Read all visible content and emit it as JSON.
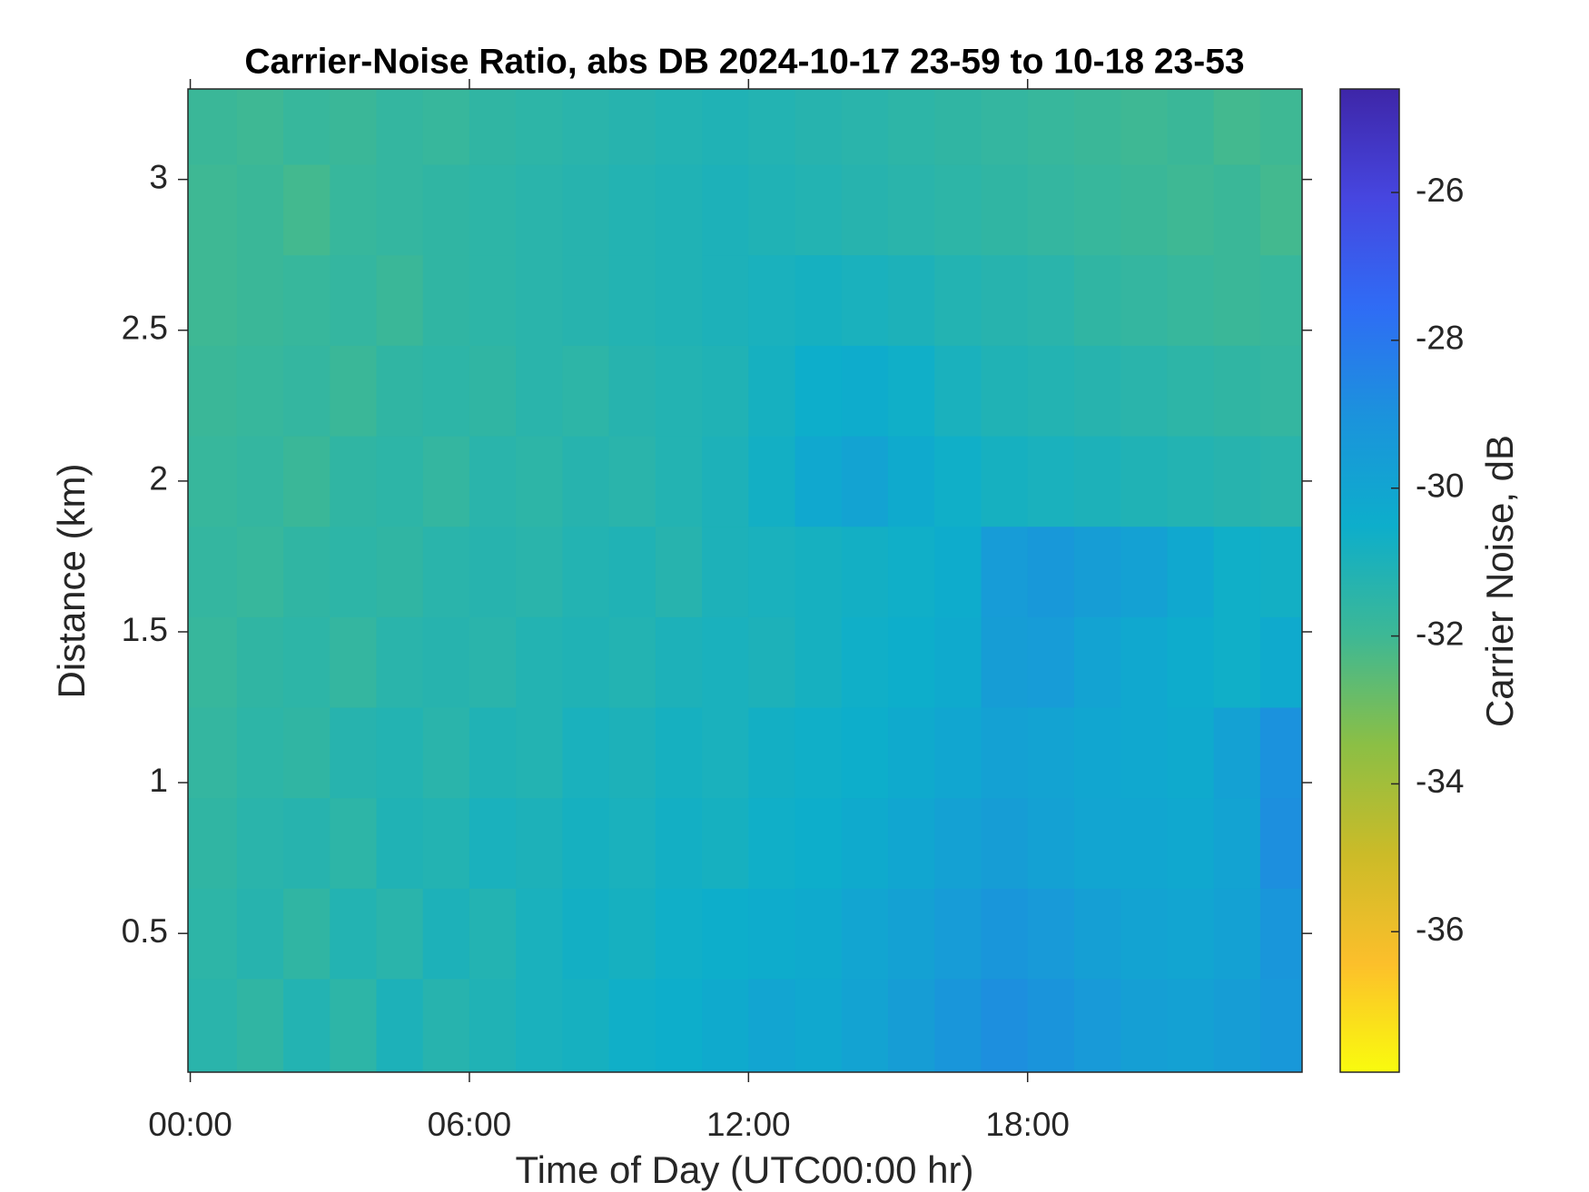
{
  "chart_data": {
    "type": "heatmap",
    "title": "Carrier-Noise Ratio, abs DB 2024-10-17 23-59 to 10-18 23-53",
    "x_label": "Time of Day (UTC00:00 hr)",
    "y_label": "Distance (km)",
    "colorbar_label": "Carrier Noise, dB",
    "xlim": [
      -0.05,
      23.9
    ],
    "xticks": [
      {
        "value": 0,
        "label": "00:00"
      },
      {
        "value": 6,
        "label": "06:00"
      },
      {
        "value": 12,
        "label": "12:00"
      },
      {
        "value": 18,
        "label": "18:00"
      }
    ],
    "ylim": [
      0.04,
      3.3
    ],
    "yticks": [
      0.5,
      1,
      1.5,
      2,
      2.5,
      3
    ],
    "clim": [
      -37.9,
      -24.6
    ],
    "cticks": [
      -36,
      -34,
      -32,
      -30,
      -28,
      -26
    ],
    "colormap": [
      "#f9fb0e",
      "#fcbf2b",
      "#cbbb28",
      "#8bbf45",
      "#3db895",
      "#0daecb",
      "#1b93dc",
      "#2f6cf5",
      "#4646e0",
      "#3e26a8"
    ],
    "x": [
      0.5,
      1.5,
      2.5,
      3.5,
      4.5,
      5.5,
      6.5,
      7.5,
      8.5,
      9.5,
      10.5,
      11.5,
      12.5,
      13.5,
      14.5,
      15.5,
      16.5,
      17.5,
      18.5,
      19.5,
      20.5,
      21.5,
      22.5,
      23.5
    ],
    "y": [
      0.2,
      0.5,
      0.8,
      1.1,
      1.4,
      1.7,
      2.0,
      2.3,
      2.6,
      2.9,
      3.2
    ],
    "z": [
      [
        -31.4,
        -31.6,
        -31.2,
        -31.5,
        -31.0,
        -31.3,
        -31.1,
        -30.9,
        -30.8,
        -30.6,
        -30.5,
        -30.3,
        -30.0,
        -30.2,
        -29.9,
        -29.6,
        -29.2,
        -28.9,
        -29.1,
        -29.4,
        -29.7,
        -29.8,
        -29.6,
        -29.3
      ],
      [
        -31.5,
        -31.3,
        -31.6,
        -31.2,
        -31.4,
        -31.0,
        -31.2,
        -30.9,
        -30.7,
        -30.8,
        -30.6,
        -30.5,
        -30.4,
        -30.3,
        -30.0,
        -29.8,
        -29.5,
        -29.2,
        -29.4,
        -29.7,
        -29.9,
        -30.0,
        -29.8,
        -29.2
      ],
      [
        -31.6,
        -31.4,
        -31.3,
        -31.5,
        -31.1,
        -31.2,
        -30.9,
        -31.0,
        -30.8,
        -30.9,
        -30.7,
        -30.8,
        -30.6,
        -30.5,
        -30.3,
        -30.1,
        -29.8,
        -29.6,
        -29.8,
        -30.0,
        -30.1,
        -30.2,
        -29.9,
        -28.9
      ],
      [
        -31.7,
        -31.5,
        -31.6,
        -31.3,
        -31.2,
        -31.4,
        -31.1,
        -31.2,
        -30.9,
        -31.0,
        -30.8,
        -30.9,
        -30.7,
        -30.6,
        -30.5,
        -30.3,
        -30.1,
        -29.8,
        -29.9,
        -30.1,
        -30.2,
        -30.3,
        -29.8,
        -29.0
      ],
      [
        -31.8,
        -31.6,
        -31.5,
        -31.7,
        -31.4,
        -31.3,
        -31.4,
        -31.2,
        -31.1,
        -31.2,
        -31.0,
        -30.9,
        -31.0,
        -30.8,
        -30.6,
        -30.5,
        -30.3,
        -29.6,
        -29.5,
        -29.9,
        -30.2,
        -30.4,
        -30.6,
        -30.3
      ],
      [
        -31.7,
        -31.8,
        -31.6,
        -31.5,
        -31.6,
        -31.4,
        -31.3,
        -31.4,
        -31.2,
        -31.1,
        -31.3,
        -31.0,
        -30.9,
        -30.8,
        -30.7,
        -30.6,
        -30.4,
        -29.5,
        -29.3,
        -29.6,
        -29.8,
        -30.2,
        -30.6,
        -30.7
      ],
      [
        -31.8,
        -31.7,
        -31.9,
        -31.6,
        -31.5,
        -31.7,
        -31.4,
        -31.5,
        -31.3,
        -31.4,
        -31.2,
        -31.0,
        -30.7,
        -30.2,
        -29.9,
        -30.3,
        -30.6,
        -30.8,
        -30.9,
        -31.0,
        -31.1,
        -31.2,
        -31.3,
        -31.4
      ],
      [
        -31.9,
        -31.8,
        -31.7,
        -31.9,
        -31.6,
        -31.5,
        -31.6,
        -31.4,
        -31.5,
        -31.3,
        -31.2,
        -31.1,
        -30.8,
        -30.5,
        -30.4,
        -30.6,
        -30.9,
        -31.1,
        -31.2,
        -31.3,
        -31.4,
        -31.5,
        -31.6,
        -31.7
      ],
      [
        -32.0,
        -31.9,
        -31.8,
        -31.7,
        -31.9,
        -31.6,
        -31.5,
        -31.4,
        -31.3,
        -31.2,
        -31.1,
        -31.0,
        -30.9,
        -30.8,
        -30.9,
        -31.0,
        -31.2,
        -31.3,
        -31.4,
        -31.6,
        -31.7,
        -31.8,
        -31.9,
        -31.8
      ],
      [
        -32.0,
        -31.9,
        -32.1,
        -31.8,
        -31.7,
        -31.6,
        -31.5,
        -31.4,
        -31.3,
        -31.2,
        -31.1,
        -31.0,
        -31.1,
        -31.2,
        -31.3,
        -31.4,
        -31.5,
        -31.6,
        -31.7,
        -31.8,
        -31.9,
        -32.0,
        -31.9,
        -32.1
      ],
      [
        -31.9,
        -32.0,
        -31.8,
        -31.9,
        -31.7,
        -31.8,
        -31.6,
        -31.5,
        -31.4,
        -31.3,
        -31.2,
        -31.1,
        -31.2,
        -31.3,
        -31.4,
        -31.5,
        -31.6,
        -31.7,
        -31.8,
        -31.9,
        -32.0,
        -31.9,
        -32.1,
        -32.0
      ]
    ]
  }
}
